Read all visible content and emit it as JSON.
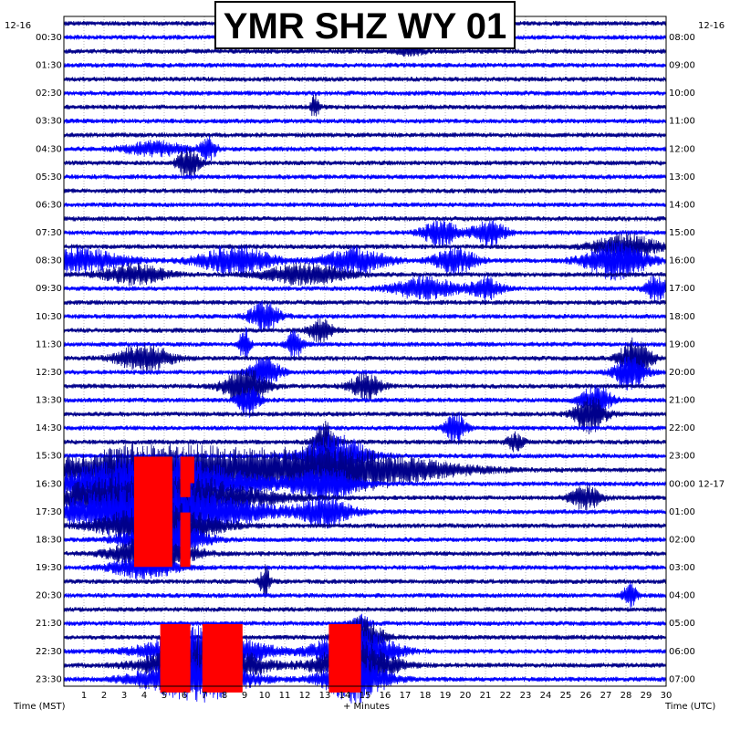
{
  "chart_data": {
    "type": "line",
    "title": "YMR SHZ WY 01",
    "date_left": "12-16",
    "date_right": "12-16",
    "xlabel": "+ Minutes",
    "ylabel_left": "Time (MST)",
    "ylabel_right": "Time (UTC)",
    "x_range": [
      0,
      30
    ],
    "x_ticks": [
      "1",
      "2",
      "3",
      "4",
      "5",
      "6",
      "7",
      "8",
      "9",
      "10",
      "11",
      "12",
      "13",
      "14",
      "15",
      "16",
      "17",
      "18",
      "19",
      "20",
      "21",
      "22",
      "23",
      "24",
      "25",
      "26",
      "27",
      "28",
      "29",
      "30"
    ],
    "row_count": 48,
    "left_labels": [
      "00:30",
      "01:30",
      "02:30",
      "03:30",
      "04:30",
      "05:30",
      "06:30",
      "07:30",
      "08:30",
      "09:30",
      "10:30",
      "11:30",
      "12:30",
      "13:30",
      "14:30",
      "15:30",
      "16:30",
      "17:30",
      "18:30",
      "19:30",
      "20:30",
      "21:30",
      "22:30",
      "23:30"
    ],
    "right_labels": [
      "08:00",
      "09:00",
      "10:00",
      "11:00",
      "12:00",
      "13:00",
      "14:00",
      "15:00",
      "16:00",
      "17:00",
      "18:00",
      "19:00",
      "20:00",
      "21:00",
      "22:00",
      "23:00",
      "00:00 12-17",
      "01:00",
      "02:00",
      "03:00",
      "04:00",
      "05:00",
      "06:00",
      "07:00"
    ],
    "trace_colors": [
      "#00008b",
      "#0000ff"
    ],
    "clip_color": "#ff0000",
    "noise_amplitude": 0.18,
    "events": [
      {
        "row": 2,
        "minute": 17.3,
        "amplitude": 0.4,
        "duration": 1.2
      },
      {
        "row": 6,
        "minute": 12.5,
        "amplitude": 0.8,
        "duration": 0.4
      },
      {
        "row": 9,
        "minute": 4.5,
        "amplitude": 0.5,
        "duration": 3.0
      },
      {
        "row": 9,
        "minute": 7.2,
        "amplitude": 0.8,
        "duration": 0.8
      },
      {
        "row": 10,
        "minute": 6.2,
        "amplitude": 1.2,
        "duration": 1.0
      },
      {
        "row": 15,
        "minute": 18.8,
        "amplitude": 0.9,
        "duration": 1.8
      },
      {
        "row": 15,
        "minute": 21.2,
        "amplitude": 1.0,
        "duration": 1.5
      },
      {
        "row": 16,
        "minute": 28.0,
        "amplitude": 0.9,
        "duration": 3.0
      },
      {
        "row": 17,
        "minute": 1.0,
        "amplitude": 0.8,
        "duration": 4.0
      },
      {
        "row": 17,
        "minute": 8.5,
        "amplitude": 1.0,
        "duration": 3.5
      },
      {
        "row": 17,
        "minute": 14.5,
        "amplitude": 0.9,
        "duration": 3.0
      },
      {
        "row": 17,
        "minute": 19.5,
        "amplitude": 0.9,
        "duration": 2.0
      },
      {
        "row": 17,
        "minute": 27.5,
        "amplitude": 1.3,
        "duration": 3.0
      },
      {
        "row": 18,
        "minute": 3.5,
        "amplitude": 0.7,
        "duration": 3.0
      },
      {
        "row": 18,
        "minute": 12.0,
        "amplitude": 0.7,
        "duration": 4.0
      },
      {
        "row": 19,
        "minute": 18.0,
        "amplitude": 0.8,
        "duration": 3.0
      },
      {
        "row": 19,
        "minute": 21.0,
        "amplitude": 0.8,
        "duration": 1.5
      },
      {
        "row": 19,
        "minute": 29.5,
        "amplitude": 1.0,
        "duration": 1.0
      },
      {
        "row": 21,
        "minute": 10.0,
        "amplitude": 1.0,
        "duration": 1.5
      },
      {
        "row": 22,
        "minute": 12.8,
        "amplitude": 0.8,
        "duration": 1.2
      },
      {
        "row": 23,
        "minute": 9.0,
        "amplitude": 1.2,
        "duration": 0.5
      },
      {
        "row": 23,
        "minute": 11.5,
        "amplitude": 1.0,
        "duration": 0.8
      },
      {
        "row": 24,
        "minute": 4.0,
        "amplitude": 1.0,
        "duration": 2.5
      },
      {
        "row": 24,
        "minute": 28.5,
        "amplitude": 1.5,
        "duration": 1.5
      },
      {
        "row": 25,
        "minute": 10.0,
        "amplitude": 1.0,
        "duration": 1.5
      },
      {
        "row": 25,
        "minute": 28.2,
        "amplitude": 1.2,
        "duration": 1.5
      },
      {
        "row": 26,
        "minute": 9.0,
        "amplitude": 1.3,
        "duration": 2.0
      },
      {
        "row": 26,
        "minute": 15.0,
        "amplitude": 0.9,
        "duration": 1.5
      },
      {
        "row": 27,
        "minute": 9.2,
        "amplitude": 1.2,
        "duration": 1.0
      },
      {
        "row": 27,
        "minute": 26.5,
        "amplitude": 1.0,
        "duration": 1.5
      },
      {
        "row": 28,
        "minute": 26.2,
        "amplitude": 1.3,
        "duration": 1.5
      },
      {
        "row": 29,
        "minute": 19.5,
        "amplitude": 1.2,
        "duration": 1.0
      },
      {
        "row": 30,
        "minute": 13.0,
        "amplitude": 1.4,
        "duration": 1.0
      },
      {
        "row": 30,
        "minute": 22.5,
        "amplitude": 0.6,
        "duration": 0.8
      },
      {
        "row": 31,
        "minute": 13.5,
        "amplitude": 1.6,
        "duration": 3.0
      },
      {
        "row": 32,
        "minute": 4.5,
        "amplitude": 1.8,
        "duration": 10.0
      },
      {
        "row": 32,
        "minute": 13.5,
        "amplitude": 1.5,
        "duration": 10.0
      },
      {
        "row": 33,
        "minute": 4.5,
        "amplitude": 2.0,
        "duration": 9.0
      },
      {
        "row": 33,
        "minute": 13.0,
        "amplitude": 1.2,
        "duration": 3.0
      },
      {
        "row": 34,
        "minute": 4.5,
        "amplitude": 2.0,
        "duration": 9.0
      },
      {
        "row": 34,
        "minute": 26.0,
        "amplitude": 0.8,
        "duration": 1.5
      },
      {
        "row": 35,
        "minute": 4.5,
        "amplitude": 2.0,
        "duration": 9.0
      },
      {
        "row": 35,
        "minute": 13.0,
        "amplitude": 1.0,
        "duration": 2.5
      },
      {
        "row": 36,
        "minute": 4.8,
        "amplitude": 1.8,
        "duration": 5.0
      },
      {
        "row": 37,
        "minute": 5.0,
        "amplitude": 1.5,
        "duration": 3.5
      },
      {
        "row": 38,
        "minute": 4.5,
        "amplitude": 1.5,
        "duration": 3.5
      },
      {
        "row": 39,
        "minute": 4.0,
        "amplitude": 0.8,
        "duration": 3.0
      },
      {
        "row": 40,
        "minute": 10.0,
        "amplitude": 1.2,
        "duration": 0.5
      },
      {
        "row": 41,
        "minute": 28.2,
        "amplitude": 1.0,
        "duration": 0.6
      },
      {
        "row": 43,
        "minute": 14.8,
        "amplitude": 0.6,
        "duration": 0.8
      },
      {
        "row": 44,
        "minute": 14.8,
        "amplitude": 1.4,
        "duration": 2.0
      },
      {
        "row": 45,
        "minute": 7.0,
        "amplitude": 1.8,
        "duration": 5.0
      },
      {
        "row": 45,
        "minute": 14.5,
        "amplitude": 1.8,
        "duration": 3.5
      },
      {
        "row": 46,
        "minute": 7.0,
        "amplitude": 1.8,
        "duration": 5.0
      },
      {
        "row": 46,
        "minute": 14.5,
        "amplitude": 1.8,
        "duration": 3.5
      },
      {
        "row": 47,
        "minute": 6.5,
        "amplitude": 1.6,
        "duration": 5.0
      },
      {
        "row": 47,
        "minute": 14.5,
        "amplitude": 1.6,
        "duration": 3.0
      }
    ],
    "clipped": [
      {
        "row": 32,
        "x_start": 3.5,
        "x_end": 5.4
      },
      {
        "row": 32,
        "x_start": 5.8,
        "x_end": 6.5
      },
      {
        "row": 33,
        "x_start": 3.5,
        "x_end": 5.4
      },
      {
        "row": 33,
        "x_start": 5.8,
        "x_end": 6.3
      },
      {
        "row": 34,
        "x_start": 3.5,
        "x_end": 5.4
      },
      {
        "row": 35,
        "x_start": 3.5,
        "x_end": 5.4
      },
      {
        "row": 36,
        "x_start": 3.5,
        "x_end": 5.4
      },
      {
        "row": 36,
        "x_start": 5.8,
        "x_end": 6.3
      },
      {
        "row": 37,
        "x_start": 3.5,
        "x_end": 5.4
      },
      {
        "row": 37,
        "x_start": 5.8,
        "x_end": 6.3
      },
      {
        "row": 38,
        "x_start": 3.5,
        "x_end": 5.4
      },
      {
        "row": 38,
        "x_start": 5.8,
        "x_end": 6.3
      },
      {
        "row": 44,
        "x_start": 4.8,
        "x_end": 6.3
      },
      {
        "row": 44,
        "x_start": 6.9,
        "x_end": 8.9
      },
      {
        "row": 44,
        "x_start": 13.2,
        "x_end": 14.8
      },
      {
        "row": 45,
        "x_start": 4.8,
        "x_end": 6.3
      },
      {
        "row": 45,
        "x_start": 6.9,
        "x_end": 8.9
      },
      {
        "row": 45,
        "x_start": 13.2,
        "x_end": 14.8
      },
      {
        "row": 46,
        "x_start": 4.8,
        "x_end": 6.3
      },
      {
        "row": 46,
        "x_start": 6.9,
        "x_end": 8.9
      },
      {
        "row": 46,
        "x_start": 13.2,
        "x_end": 14.8
      },
      {
        "row": 47,
        "x_start": 4.8,
        "x_end": 6.3
      },
      {
        "row": 47,
        "x_start": 6.9,
        "x_end": 8.9
      },
      {
        "row": 47,
        "x_start": 13.2,
        "x_end": 14.8
      }
    ]
  }
}
